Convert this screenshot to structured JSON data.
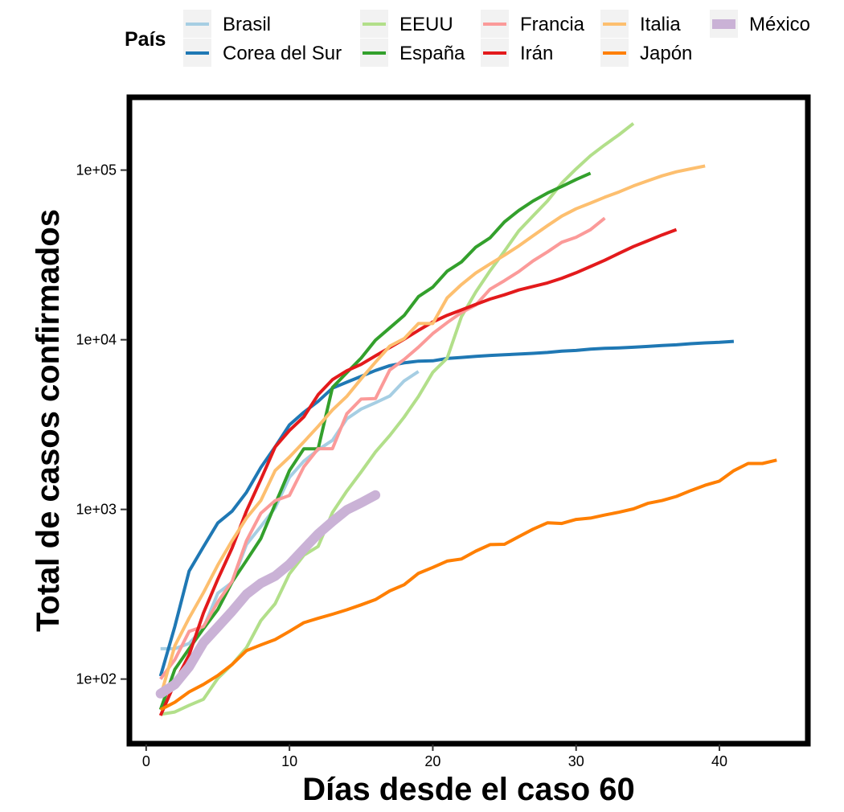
{
  "chart_data": {
    "type": "line",
    "xlabel": "Días desde el caso 60",
    "ylabel": "Total de casos confirmados",
    "x_ticks": [
      0,
      10,
      20,
      30,
      40
    ],
    "xlim": [
      -1,
      46
    ],
    "y_scale": "log",
    "y_ticks": [
      100,
      1000,
      10000,
      100000
    ],
    "y_tick_labels": [
      "1e+02",
      "1e+03",
      "1e+04",
      "1e+05"
    ],
    "ylim": [
      43,
      260000
    ],
    "grid": false,
    "legend": {
      "title": "País",
      "position": "top",
      "entries": [
        "Brasil",
        "Corea del Sur",
        "EEUU",
        "España",
        "Francia",
        "Irán",
        "Italia",
        "Japón",
        "México"
      ]
    },
    "series": [
      {
        "name": "Brasil",
        "color": "#a6cee3",
        "x": [
          1,
          2,
          3,
          4,
          5,
          6,
          7,
          8,
          9,
          10,
          11,
          12,
          13,
          14,
          15,
          16,
          17,
          18,
          19
        ],
        "y": [
          151,
          151,
          162,
          200,
          321,
          372,
          621,
          793,
          1021,
          1546,
          1924,
          2247,
          2554,
          3417,
          3904,
          4256,
          4661,
          5717,
          6500
        ]
      },
      {
        "name": "Corea del Sur",
        "color": "#1f78b4",
        "x": [
          1,
          2,
          3,
          4,
          5,
          6,
          7,
          8,
          9,
          10,
          11,
          12,
          13,
          14,
          15,
          16,
          17,
          18,
          19,
          20,
          21,
          22,
          23,
          24,
          25,
          26,
          27,
          28,
          29,
          30,
          31,
          32,
          33,
          34,
          35,
          36,
          37,
          38,
          39,
          40,
          41
        ],
        "y": [
          104,
          204,
          433,
          602,
          833,
          977,
          1261,
          1766,
          2337,
          3150,
          3736,
          4335,
          5186,
          5621,
          6088,
          6593,
          7041,
          7313,
          7478,
          7513,
          7755,
          7869,
          7979,
          8086,
          8162,
          8236,
          8320,
          8413,
          8565,
          8652,
          8799,
          8897,
          8961,
          9037,
          9137,
          9241,
          9332,
          9478,
          9583,
          9661,
          9786
        ]
      },
      {
        "name": "EEUU",
        "color": "#b2df8a",
        "x": [
          1,
          2,
          3,
          4,
          5,
          6,
          7,
          8,
          9,
          10,
          11,
          12,
          13,
          14,
          15,
          16,
          17,
          18,
          19,
          20,
          21,
          22,
          23,
          24,
          25,
          26,
          27,
          28,
          29,
          30,
          31,
          32,
          33,
          34
        ],
        "y": [
          62,
          64,
          70,
          76,
          101,
          122,
          153,
          221,
          278,
          417,
          537,
          605,
          959,
          1281,
          1663,
          2179,
          2726,
          3499,
          4632,
          6421,
          7786,
          13680,
          19101,
          25493,
          33276,
          43847,
          53740,
          65778,
          83836,
          101657,
          121478,
          140886,
          161807,
          188172
        ]
      },
      {
        "name": "España",
        "color": "#33a02c",
        "x": [
          1,
          2,
          3,
          4,
          5,
          6,
          7,
          8,
          9,
          10,
          11,
          12,
          13,
          14,
          15,
          16,
          17,
          18,
          19,
          20,
          21,
          22,
          23,
          24,
          25,
          26,
          27,
          28,
          29,
          30,
          31
        ],
        "y": [
          66,
          114,
          151,
          198,
          257,
          374,
          500,
          673,
          1073,
          1695,
          2277,
          2277,
          5232,
          6391,
          7798,
          9942,
          11748,
          13910,
          17963,
          20410,
          25374,
          28768,
          35136,
          39885,
          49515,
          57786,
          65719,
          73235,
          80110,
          87956,
          95923
        ]
      },
      {
        "name": "Francia",
        "color": "#fb9a99",
        "x": [
          1,
          2,
          3,
          4,
          5,
          6,
          7,
          8,
          9,
          10,
          11,
          12,
          13,
          14,
          15,
          16,
          17,
          18,
          19,
          20,
          21,
          22,
          23,
          24,
          25,
          26,
          27,
          28,
          29,
          30,
          31,
          32
        ],
        "y": [
          100,
          130,
          191,
          204,
          285,
          377,
          653,
          949,
          1126,
          1209,
          1784,
          2281,
          2281,
          3661,
          4469,
          4499,
          6633,
          7652,
          9043,
          10871,
          12612,
          14459,
          16018,
          19856,
          22304,
          25233,
          29155,
          32964,
          37575,
          40174,
          44550,
          52128
        ]
      },
      {
        "name": "Irán",
        "color": "#e31a1c",
        "x": [
          1,
          2,
          3,
          4,
          5,
          6,
          7,
          8,
          9,
          10,
          11,
          12,
          13,
          14,
          15,
          16,
          17,
          18,
          19,
          20,
          21,
          22,
          23,
          24,
          25,
          26,
          27,
          28,
          29,
          30,
          31,
          32,
          33,
          34,
          35,
          36,
          37
        ],
        "y": [
          61,
          95,
          139,
          245,
          388,
          593,
          978,
          1501,
          2336,
          2922,
          3513,
          4747,
          5823,
          6566,
          7161,
          8042,
          9000,
          10075,
          11364,
          12729,
          13938,
          14991,
          16169,
          17361,
          18407,
          19644,
          20610,
          21638,
          23049,
          24811,
          27017,
          29406,
          32332,
          35408,
          38309,
          41495,
          44605
        ]
      },
      {
        "name": "Italia",
        "color": "#fdbf6f",
        "x": [
          1,
          2,
          3,
          4,
          5,
          6,
          7,
          8,
          9,
          10,
          11,
          12,
          13,
          14,
          15,
          16,
          17,
          18,
          19,
          20,
          21,
          22,
          23,
          24,
          25,
          26,
          27,
          28,
          29,
          30,
          31,
          32,
          33,
          34,
          35,
          36,
          37,
          38,
          39
        ],
        "y": [
          79,
          157,
          229,
          323,
          470,
          655,
          889,
          1128,
          1694,
          2036,
          2502,
          3089,
          3858,
          4636,
          5883,
          7375,
          9172,
          10149,
          12462,
          12462,
          17660,
          21157,
          24747,
          27980,
          31506,
          35713,
          41035,
          47021,
          53578,
          59138,
          63927,
          69176,
          74386,
          80589,
          86498,
          92472,
          97689,
          101739,
          105792
        ]
      },
      {
        "name": "Japón",
        "color": "#ff7f00",
        "x": [
          1,
          2,
          3,
          4,
          5,
          6,
          7,
          8,
          9,
          10,
          11,
          12,
          13,
          14,
          15,
          16,
          17,
          18,
          19,
          20,
          21,
          22,
          23,
          24,
          25,
          26,
          27,
          28,
          29,
          30,
          31,
          32,
          33,
          34,
          35,
          36,
          37,
          38,
          39,
          40,
          41,
          42,
          43,
          44
        ],
        "y": [
          66,
          73,
          84,
          93,
          105,
          122,
          147,
          159,
          171,
          191,
          215,
          228,
          241,
          256,
          274,
          294,
          331,
          360,
          420,
          455,
          496,
          510,
          568,
          620,
          623,
          691,
          765,
          834,
          826,
          873,
          889,
          927,
          963,
          1007,
          1086,
          1128,
          1193,
          1291,
          1387,
          1468,
          1693,
          1866,
          1866,
          1953
        ]
      },
      {
        "name": "México",
        "color": "#cab2d6",
        "x": [
          1,
          2,
          3,
          4,
          5,
          6,
          7,
          8,
          9,
          10,
          11,
          12,
          13,
          14,
          15,
          16
        ],
        "y": [
          82,
          93,
          118,
          164,
          203,
          251,
          316,
          367,
          405,
          475,
          585,
          717,
          848,
          993,
          1094,
          1215
        ]
      }
    ]
  }
}
